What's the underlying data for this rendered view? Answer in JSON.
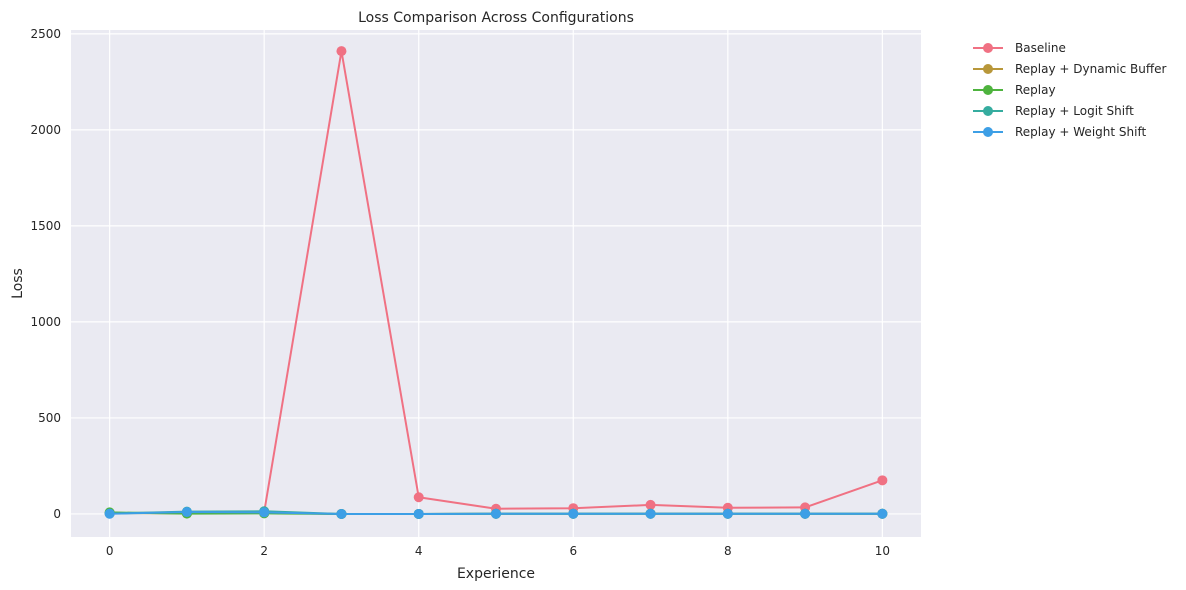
{
  "chart_data": {
    "type": "line",
    "title": "Loss Comparison Across Configurations",
    "xlabel": "Experience",
    "ylabel": "Loss",
    "x": [
      0,
      1,
      2,
      3,
      4,
      5,
      6,
      7,
      8,
      9,
      10
    ],
    "xlim": [
      -0.5,
      10.5
    ],
    "ylim": [
      -120,
      2520
    ],
    "xticks": [
      0,
      2,
      4,
      6,
      8,
      10
    ],
    "yticks": [
      0,
      500,
      1000,
      1500,
      2000,
      2500
    ],
    "grid": true,
    "legend_position": "outside-top-right",
    "series": [
      {
        "name": "Baseline",
        "color": "#f07183",
        "values": [
          3,
          8,
          10,
          2410,
          87,
          27,
          30,
          47,
          32,
          34,
          175
        ]
      },
      {
        "name": "Replay + Dynamic Buffer",
        "color": "#b8973a",
        "values": [
          5,
          3,
          6,
          0,
          0,
          1,
          1,
          2,
          1,
          1,
          1
        ]
      },
      {
        "name": "Replay",
        "color": "#4eb33e",
        "values": [
          8,
          2,
          3,
          0,
          0,
          1,
          1,
          1,
          1,
          1,
          1
        ]
      },
      {
        "name": "Replay + Logit Shift",
        "color": "#35ac9f",
        "values": [
          2,
          12,
          14,
          0,
          0,
          1,
          1,
          1,
          1,
          1,
          1
        ]
      },
      {
        "name": "Replay + Weight Shift",
        "color": "#3d9fe6",
        "values": [
          1,
          10,
          8,
          0,
          0,
          1,
          1,
          1,
          1,
          1,
          1
        ]
      }
    ]
  }
}
